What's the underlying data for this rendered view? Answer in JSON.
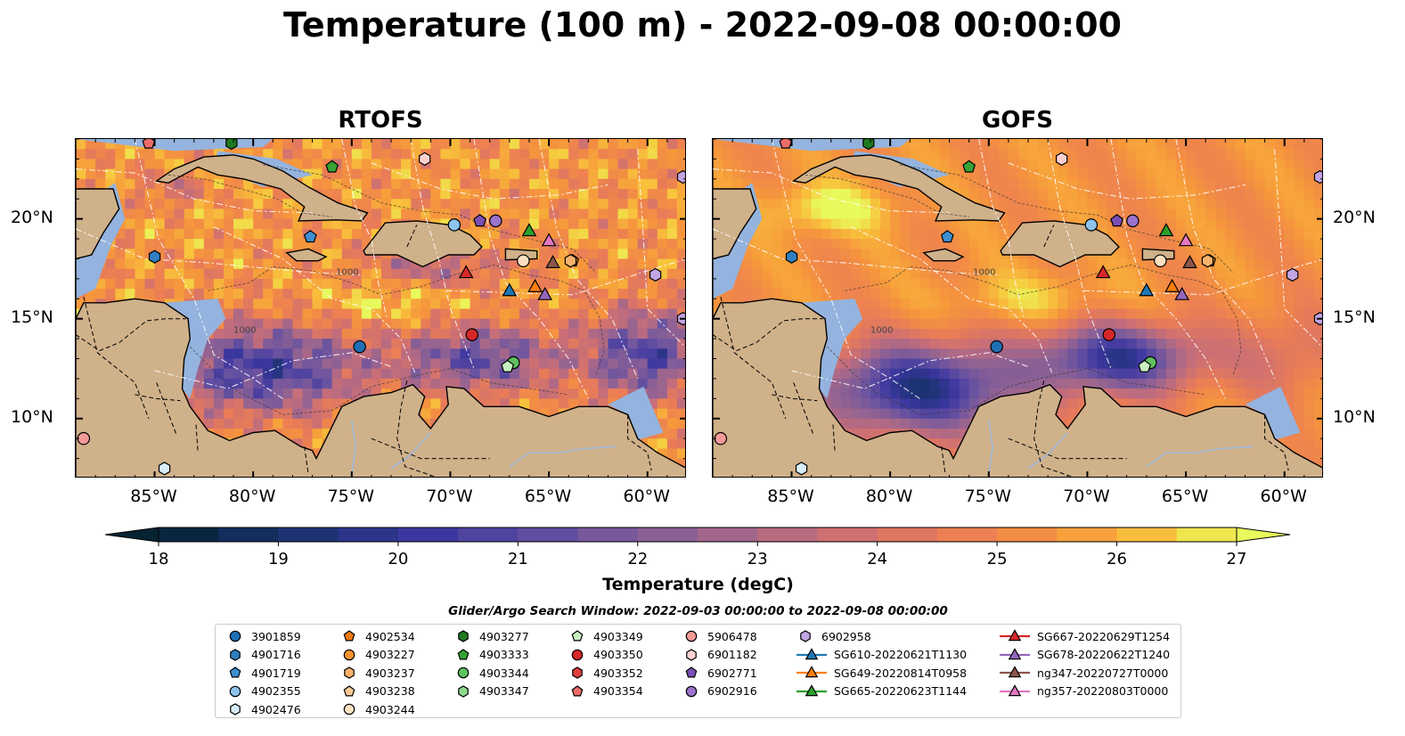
{
  "title": "Temperature (100 m) - 2022-09-08 00:00:00",
  "panels": [
    {
      "id": "rtofs",
      "title": "RTOFS"
    },
    {
      "id": "gofs",
      "title": "GOFS"
    }
  ],
  "map": {
    "lon_range": [
      -89,
      -58
    ],
    "lat_range": [
      7,
      24
    ],
    "lon_ticks": [
      "85°W",
      "80°W",
      "75°W",
      "70°W",
      "65°W",
      "60°W"
    ],
    "lat_ticks": [
      "20°N",
      "15°N",
      "10°N"
    ],
    "lon_tick_values": [
      -85,
      -80,
      -75,
      -70,
      -65,
      -60
    ],
    "lat_tick_values": [
      20,
      15,
      10
    ],
    "contour_label": "1000",
    "colors": {
      "land": "#cfb18a",
      "ocean_shelf": "#94b3de",
      "coast": "#000000",
      "eez": "#ffffff"
    }
  },
  "colorbar": {
    "label": "Temperature (degC)",
    "min": 18,
    "max": 27,
    "ticks": [
      "18",
      "19",
      "20",
      "21",
      "22",
      "23",
      "24",
      "25",
      "26",
      "27"
    ],
    "extend": "both",
    "colormap": "thermal"
  },
  "search_window": "Glider/Argo Search Window: 2022-09-03 00:00:00 to 2022-09-08 00:00:00",
  "legend": [
    {
      "label": "3901859",
      "marker": "circle",
      "color": "#1f6fb4"
    },
    {
      "label": "4901716",
      "marker": "hexagon",
      "color": "#2f7fc0"
    },
    {
      "label": "4901719",
      "marker": "pentagon",
      "color": "#3c8fd0"
    },
    {
      "label": "4902355",
      "marker": "circle",
      "color": "#8cc4ec"
    },
    {
      "label": "4902476",
      "marker": "hexagon",
      "color": "#d6ecfa"
    },
    {
      "label": "4902534",
      "marker": "pentagon",
      "color": "#f07a10"
    },
    {
      "label": "4903227",
      "marker": "circle",
      "color": "#f5932f"
    },
    {
      "label": "4903237",
      "marker": "hexagon",
      "color": "#f8b36b"
    },
    {
      "label": "4903238",
      "marker": "pentagon",
      "color": "#fbc896"
    },
    {
      "label": "4903244",
      "marker": "circle",
      "color": "#fde0c2"
    },
    {
      "label": "4903277",
      "marker": "hexagon",
      "color": "#1f7a1f"
    },
    {
      "label": "4903333",
      "marker": "pentagon",
      "color": "#36a336"
    },
    {
      "label": "4903344",
      "marker": "circle",
      "color": "#5fc05f"
    },
    {
      "label": "4903347",
      "marker": "hexagon",
      "color": "#8ed88e"
    },
    {
      "label": "4903349",
      "marker": "pentagon",
      "color": "#c8efc0"
    },
    {
      "label": "4903350",
      "marker": "circle",
      "color": "#d62728"
    },
    {
      "label": "4903352",
      "marker": "hexagon",
      "color": "#e0403f"
    },
    {
      "label": "4903354",
      "marker": "pentagon",
      "color": "#ec6c6a"
    },
    {
      "label": "5906478",
      "marker": "circle",
      "color": "#f29a98"
    },
    {
      "label": "6901182",
      "marker": "hexagon",
      "color": "#fbd0cf"
    },
    {
      "label": "6902771",
      "marker": "pentagon",
      "color": "#7b4fb5"
    },
    {
      "label": "6902916",
      "marker": "circle",
      "color": "#9b72cc"
    },
    {
      "label": "6902958",
      "marker": "hexagon",
      "color": "#c2a5e3"
    },
    {
      "label": "SG610-20220621T1130",
      "marker": "triangle-line",
      "color": "#1f77b4"
    },
    {
      "label": "SG649-20220814T0958",
      "marker": "triangle-line",
      "color": "#ff7f0e"
    },
    {
      "label": "SG665-20220623T1144",
      "marker": "triangle-line",
      "color": "#2ca02c"
    },
    {
      "label": "SG667-20220629T1254",
      "marker": "triangle-line",
      "color": "#d62728"
    },
    {
      "label": "SG678-20220622T1240",
      "marker": "triangle-line",
      "color": "#9467bd"
    },
    {
      "label": "ng347-20220727T0000",
      "marker": "triangle-line",
      "color": "#8c564b"
    },
    {
      "label": "ng357-20220803T0000",
      "marker": "triangle-line",
      "color": "#e377c2"
    }
  ],
  "observations": [
    {
      "id": "3901859",
      "lon": -74.6,
      "lat": 13.6
    },
    {
      "id": "4901716",
      "lon": -85.0,
      "lat": 18.1
    },
    {
      "id": "4901719",
      "lon": -77.1,
      "lat": 19.1
    },
    {
      "id": "4902355",
      "lon": -69.8,
      "lat": 19.7
    },
    {
      "id": "4902476",
      "lon": -84.5,
      "lat": 7.5
    },
    {
      "id": "4902534",
      "lon": -63.8,
      "lat": 17.9
    },
    {
      "id": "4903237",
      "lon": -63.9,
      "lat": 17.9
    },
    {
      "id": "4903244",
      "lon": -66.3,
      "lat": 17.9
    },
    {
      "id": "4903277",
      "lon": -81.1,
      "lat": 23.8
    },
    {
      "id": "4903333",
      "lon": -76.0,
      "lat": 22.6
    },
    {
      "id": "4903344",
      "lon": -66.8,
      "lat": 12.8
    },
    {
      "id": "4903349",
      "lon": -67.1,
      "lat": 12.6
    },
    {
      "id": "4903350",
      "lon": -68.9,
      "lat": 14.2
    },
    {
      "id": "4903354",
      "lon": -85.3,
      "lat": 23.8
    },
    {
      "id": "5906478",
      "lon": -88.6,
      "lat": 9.0
    },
    {
      "id": "6901182",
      "lon": -71.3,
      "lat": 23.0
    },
    {
      "id": "6902771",
      "lon": -68.5,
      "lat": 19.9
    },
    {
      "id": "6902916",
      "lon": -67.7,
      "lat": 19.9
    },
    {
      "id": "6902958",
      "lon": -58.2,
      "lat": 22.1
    },
    {
      "id": "6902958",
      "lon": -59.6,
      "lat": 17.2
    },
    {
      "id": "6902958",
      "lon": -58.2,
      "lat": 15.0
    },
    {
      "id": "SG610-20220621T1130",
      "lon": -67.0,
      "lat": 16.4
    },
    {
      "id": "SG649-20220814T0958",
      "lon": -65.7,
      "lat": 16.6
    },
    {
      "id": "SG665-20220623T1144",
      "lon": -66.0,
      "lat": 19.4
    },
    {
      "id": "SG667-20220629T1254",
      "lon": -69.2,
      "lat": 17.3
    },
    {
      "id": "SG678-20220622T1240",
      "lon": -65.2,
      "lat": 16.2
    },
    {
      "id": "ng347-20220727T0000",
      "lon": -64.8,
      "lat": 17.8
    },
    {
      "id": "ng357-20220803T0000",
      "lon": -65.0,
      "lat": 18.9
    }
  ]
}
